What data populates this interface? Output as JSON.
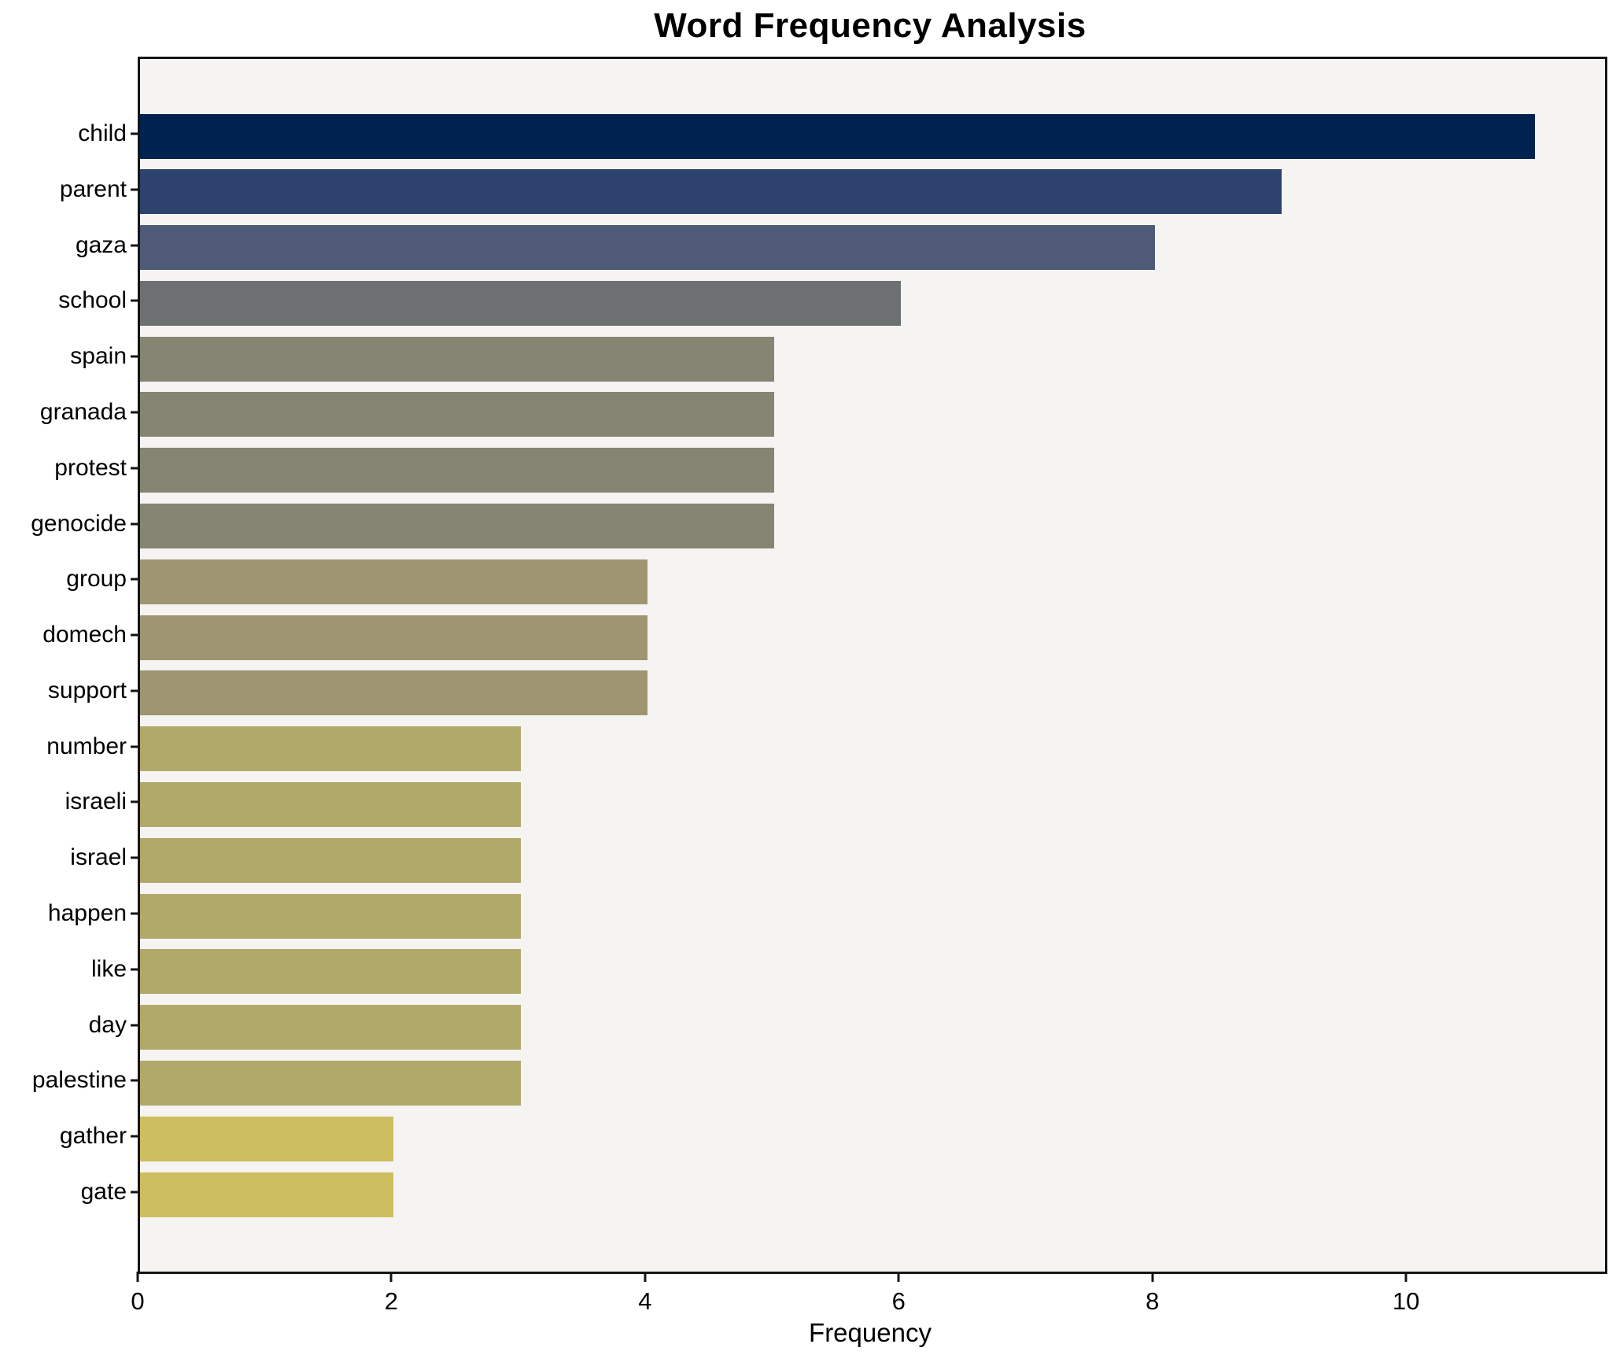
{
  "chart_data": {
    "type": "bar",
    "orientation": "horizontal",
    "title": "Word Frequency Analysis",
    "xlabel": "Frequency",
    "ylabel": "",
    "categories": [
      "child",
      "parent",
      "gaza",
      "school",
      "spain",
      "granada",
      "protest",
      "genocide",
      "group",
      "domech",
      "support",
      "number",
      "israeli",
      "israel",
      "happen",
      "like",
      "day",
      "palestine",
      "gather",
      "gate"
    ],
    "values": [
      11,
      9,
      8,
      6,
      5,
      5,
      5,
      5,
      4,
      4,
      4,
      3,
      3,
      3,
      3,
      3,
      3,
      3,
      2,
      2
    ],
    "bar_colors": [
      "#00224e",
      "#2e426e",
      "#4e5a77",
      "#6d7071",
      "#868472",
      "#868472",
      "#868472",
      "#868472",
      "#9d9670",
      "#9d9670",
      "#9d9670",
      "#b1a96a",
      "#b1a96a",
      "#b1a96a",
      "#b1a96a",
      "#b1a96a",
      "#b1a96a",
      "#b1a96a",
      "#cdbe5f",
      "#cdbe5f"
    ],
    "xticks": [
      0,
      2,
      4,
      6,
      8,
      10
    ],
    "xlim": [
      0,
      11.55
    ],
    "grid": false,
    "legend": "none",
    "plot_background": "#f5f4f3",
    "figure_background": "#ffffff",
    "colormap": "cividis"
  }
}
